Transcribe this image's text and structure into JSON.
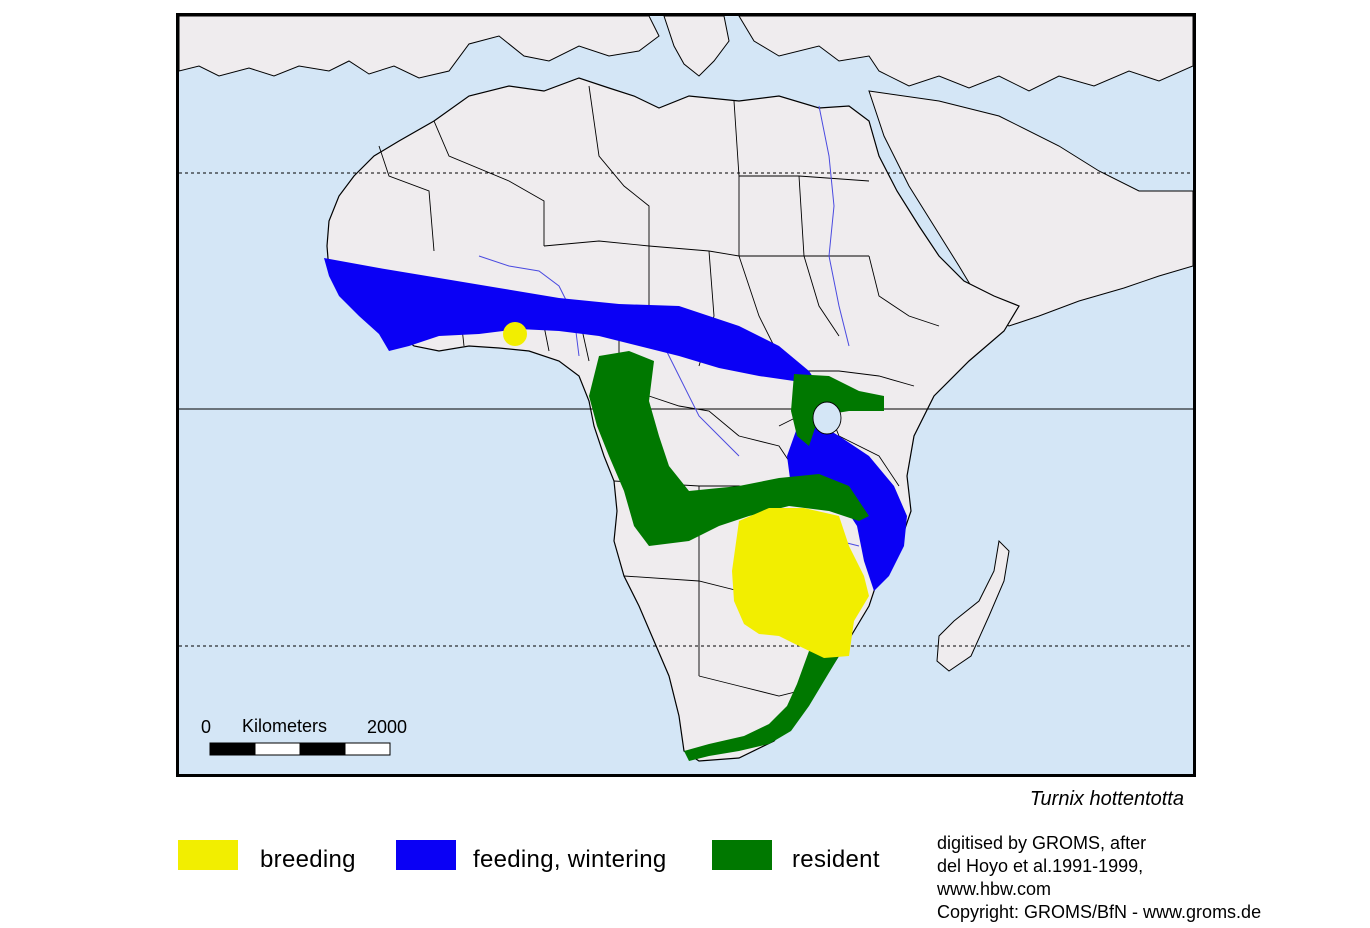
{
  "map": {
    "species": "Turnix hottentotta",
    "scale_bar": {
      "start_label": "0",
      "unit_label": "Kilometers",
      "end_label": "2000"
    }
  },
  "legend": [
    {
      "label": "breeding",
      "color": "#f2ee00"
    },
    {
      "label": "feeding, wintering",
      "color": "#0a00f5"
    },
    {
      "label": "resident",
      "color": "#007800"
    }
  ],
  "colors": {
    "ocean": "#d4e6f6",
    "land": "#efecee",
    "border": "#000000",
    "river": "#4a4ae0"
  },
  "credits": {
    "line1": "digitised by GROMS, after",
    "line2": "del Hoyo et al.1991-1999,",
    "line3": "www.hbw.com",
    "line4": "Copyright: GROMS/BfN - www.groms.de"
  }
}
